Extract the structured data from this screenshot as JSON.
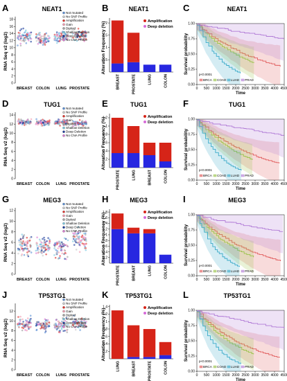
{
  "panels": [
    {
      "gene": "NEAT1",
      "letters": [
        "A",
        "B",
        "C"
      ],
      "expr": {
        "ylabel": "RNA Seq v2 (log2)",
        "yticks": [
          0,
          2,
          4,
          6,
          8,
          10,
          12,
          14,
          16,
          18
        ],
        "ylim": [
          0,
          18
        ],
        "groups": [
          {
            "name": "BREAST",
            "mean": 13,
            "spread": 1.8
          },
          {
            "name": "COLON",
            "mean": 12.5,
            "spread": 1.6
          },
          {
            "name": "LUNG",
            "mean": 13,
            "spread": 1.7
          },
          {
            "name": "PROSTATE",
            "mean": 13.5,
            "spread": 1.5
          }
        ],
        "legend": [
          "Not mutated",
          "No SNP Profile",
          "Amplification",
          "Gain",
          "Diploid",
          "Shallow Deletion",
          "Deep Deletion",
          "No CNA Profile"
        ]
      },
      "alt": {
        "ylabel": "Alteration Frequency (%)",
        "yticks": [
          0.5,
          1,
          1.5,
          2
        ],
        "ylim": [
          0,
          2.2
        ],
        "categories": [
          "BREAST",
          "PROSTATE",
          "LUNG",
          "COLON"
        ],
        "amplification": [
          1.75,
          1.2,
          0,
          0
        ],
        "deep_deletion": [
          0.35,
          0.4,
          0.3,
          0.3
        ],
        "legend": [
          "Amplification",
          "Deep deletion"
        ]
      },
      "surv": {
        "ylabel": "Survival probability",
        "xlabel": "Time",
        "xticks": [
          0,
          500,
          1000,
          1500,
          2000,
          2500,
          3000,
          3500,
          4000,
          4500
        ],
        "yticks": [
          0.0,
          0.25,
          0.5,
          0.75,
          1.0
        ],
        "pvalue": "p<0.0001",
        "series": [
          "BRCA",
          "COAD",
          "LUAD",
          "PRAD"
        ],
        "last_x": [
          4400,
          3000,
          2300,
          4500
        ]
      }
    },
    {
      "gene": "TUG1",
      "letters": [
        "D",
        "E",
        "F"
      ],
      "expr": {
        "ylabel": "RNA Seq v2 (log2)",
        "yticks": [
          0,
          2,
          4,
          6,
          8,
          10,
          12,
          14
        ],
        "ylim": [
          0,
          14
        ],
        "groups": [
          {
            "name": "BREAST",
            "mean": 12.5,
            "spread": 0.6
          },
          {
            "name": "COLON",
            "mean": 12.3,
            "spread": 0.6
          },
          {
            "name": "LUNG",
            "mean": 12.4,
            "spread": 0.6
          },
          {
            "name": "PROSTATE",
            "mean": 12.2,
            "spread": 0.5
          }
        ],
        "legend": [
          "Not mutated",
          "No SNP Profile",
          "Amplification",
          "Gain",
          "Diploid",
          "Shallow Deletion",
          "Deep Deletion",
          "No CNA Profile"
        ]
      },
      "alt": {
        "ylabel": "Alteration Frequency (%)",
        "yticks": [
          0.2,
          0.4,
          0.6,
          0.8,
          1,
          1.2
        ],
        "ylim": [
          0,
          1.3
        ],
        "categories": [
          "PROSTATE",
          "LUNG",
          "BREAST",
          "COLON"
        ],
        "amplification": [
          0.85,
          0.65,
          0.3,
          0.45
        ],
        "deep_deletion": [
          0.35,
          0.35,
          0.3,
          0.15
        ],
        "legend": [
          "Amplification",
          "Deep deletion"
        ]
      },
      "surv": {
        "ylabel": "Survival probability",
        "xlabel": "Time",
        "xticks": [
          0,
          500,
          1000,
          1500,
          2000,
          2500,
          3000,
          3500,
          4000,
          4500
        ],
        "yticks": [
          0.0,
          0.25,
          0.5,
          0.75,
          1.0
        ],
        "pvalue": "p<0.0001",
        "series": [
          "BRCA",
          "COAD",
          "LUAD",
          "PRAD"
        ],
        "last_x": [
          4400,
          3000,
          2300,
          4500
        ]
      }
    },
    {
      "gene": "MEG3",
      "letters": [
        "G",
        "H",
        "I"
      ],
      "expr": {
        "ylabel": "RNA Seq v2 (log2)",
        "yticks": [
          0,
          2,
          4,
          6,
          8,
          10,
          12
        ],
        "ylim": [
          0,
          12
        ],
        "groups": [
          {
            "name": "BREAST",
            "mean": 5.5,
            "spread": 2.2
          },
          {
            "name": "COLON",
            "mean": 5.2,
            "spread": 2.0
          },
          {
            "name": "LUNG",
            "mean": 5.0,
            "spread": 2.2
          },
          {
            "name": "PROSTATE",
            "mean": 6.5,
            "spread": 2.0
          }
        ],
        "legend": [
          "Not mutated",
          "No SNP Profile",
          "Amplification",
          "Gain",
          "Diploid",
          "Shallow Deletion",
          "Deep Deletion",
          "No CNA Profile"
        ]
      },
      "alt": {
        "ylabel": "Alteration Frequency (%)",
        "yticks": [
          0.2,
          0.4,
          0.6,
          0.8,
          1,
          1.2,
          1.4,
          1.6,
          1.8
        ],
        "ylim": [
          0,
          1.9
        ],
        "categories": [
          "PROSTATE",
          "BREAST",
          "LUNG",
          "COLON"
        ],
        "amplification": [
          0.55,
          0.2,
          0.15,
          0
        ],
        "deep_deletion": [
          1.2,
          1.05,
          1.05,
          0.3
        ],
        "legend": [
          "Amplification",
          "Deep deletion"
        ]
      },
      "surv": {
        "ylabel": "Survival probability",
        "xlabel": "Time",
        "xticks": [
          0,
          500,
          1000,
          1500,
          2000,
          2500,
          3000,
          3500,
          4000,
          4500
        ],
        "yticks": [
          0.0,
          0.25,
          0.5,
          0.75,
          1.0
        ],
        "pvalue": "p<0.0001",
        "series": [
          "BRCA",
          "COAD",
          "LUAD",
          "PRAD"
        ],
        "last_x": [
          4400,
          3000,
          2300,
          4500
        ]
      }
    },
    {
      "gene": "TP53TG1",
      "letters": [
        "J",
        "K",
        "L"
      ],
      "expr": {
        "ylabel": "RNA Seq v2 (log2)",
        "yticks": [
          0,
          2,
          4,
          6,
          8,
          10,
          12
        ],
        "ylim": [
          0,
          13
        ],
        "groups": [
          {
            "name": "BREAST",
            "mean": 9.5,
            "spread": 1.6
          },
          {
            "name": "COLON",
            "mean": 9.2,
            "spread": 1.4
          },
          {
            "name": "LUNG",
            "mean": 9.0,
            "spread": 1.5
          },
          {
            "name": "PROSTATE",
            "mean": 9.5,
            "spread": 1.3
          }
        ],
        "legend": [
          "Not mutated",
          "No SNP Profile",
          "Amplification",
          "Gain",
          "Diploid",
          "Shallow Deletion",
          "Deep Deletion",
          "No CNA Profile"
        ]
      },
      "alt": {
        "ylabel": "Alteration Frequency (%)",
        "yticks": [
          0.2,
          0.4,
          0.6,
          0.8,
          1,
          1.2,
          1.4
        ],
        "ylim": [
          0,
          1.45
        ],
        "categories": [
          "LUNG",
          "BREAST",
          "PROSTATE",
          "COLON"
        ],
        "amplification": [
          1.3,
          0.85,
          0.75,
          0.35
        ],
        "deep_deletion": [
          0,
          0.05,
          0.05,
          0.1
        ],
        "legend": [
          "Amplification",
          "Deep deletion"
        ]
      },
      "surv": {
        "ylabel": "Survival probability",
        "xlabel": "Time",
        "xticks": [
          0,
          500,
          1000,
          1500,
          2000,
          2500,
          3000,
          3500,
          4000,
          4500
        ],
        "yticks": [
          0.0,
          0.25,
          0.5,
          0.75,
          1.0
        ],
        "pvalue": "p<0.0001",
        "series": [
          "BRCA",
          "COAD",
          "LUAD",
          "PRAD"
        ],
        "last_x": [
          4400,
          3000,
          2300,
          4500
        ]
      }
    }
  ],
  "colors": {
    "amplification": "#d62418",
    "deep_deletion": "#2727e0",
    "BRCA": "#e05a5a",
    "COAD": "#9ac24a",
    "LUAD": "#3aaac8",
    "PRAD": "#b07ad6",
    "expr_points": [
      "#5a8fd6",
      "#c8c8c8",
      "#e0302a",
      "#f29ab0",
      "#a0a0a0",
      "#7ac8e0",
      "#1a3a9a",
      "#d878d0"
    ]
  },
  "chart_data": [
    {
      "type": "scatter",
      "title": "NEAT1",
      "ylabel": "RNA Seq v2 (log2)",
      "categories": [
        "BREAST",
        "COLON",
        "LUNG",
        "PROSTATE"
      ],
      "ylim": [
        0,
        18
      ]
    },
    {
      "type": "bar",
      "title": "NEAT1",
      "ylabel": "Alteration Frequency (%)",
      "categories": [
        "BREAST",
        "PROSTATE",
        "LUNG",
        "COLON"
      ],
      "series": [
        {
          "name": "Amplification",
          "values": [
            1.75,
            1.2,
            0,
            0
          ]
        },
        {
          "name": "Deep deletion",
          "values": [
            0.35,
            0.4,
            0.3,
            0.3
          ]
        }
      ],
      "ylim": [
        0,
        2.2
      ]
    },
    {
      "type": "line",
      "title": "NEAT1",
      "xlabel": "Time",
      "ylabel": "Survival probability",
      "series": [
        {
          "name": "BRCA"
        },
        {
          "name": "COAD"
        },
        {
          "name": "LUAD"
        },
        {
          "name": "PRAD"
        }
      ],
      "xlim": [
        0,
        4500
      ],
      "ylim": [
        0,
        1
      ]
    },
    {
      "type": "scatter",
      "title": "TUG1",
      "ylabel": "RNA Seq v2 (log2)",
      "categories": [
        "BREAST",
        "COLON",
        "LUNG",
        "PROSTATE"
      ],
      "ylim": [
        0,
        14
      ]
    },
    {
      "type": "bar",
      "title": "TUG1",
      "ylabel": "Alteration Frequency (%)",
      "categories": [
        "PROSTATE",
        "LUNG",
        "BREAST",
        "COLON"
      ],
      "series": [
        {
          "name": "Amplification",
          "values": [
            0.85,
            0.65,
            0.3,
            0.45
          ]
        },
        {
          "name": "Deep deletion",
          "values": [
            0.35,
            0.35,
            0.3,
            0.15
          ]
        }
      ],
      "ylim": [
        0,
        1.3
      ]
    },
    {
      "type": "line",
      "title": "TUG1",
      "xlabel": "Time",
      "ylabel": "Survival probability",
      "series": [
        {
          "name": "BRCA"
        },
        {
          "name": "COAD"
        },
        {
          "name": "LUAD"
        },
        {
          "name": "PRAD"
        }
      ],
      "xlim": [
        0,
        4500
      ],
      "ylim": [
        0,
        1
      ]
    },
    {
      "type": "scatter",
      "title": "MEG3",
      "ylabel": "RNA Seq v2 (log2)",
      "categories": [
        "BREAST",
        "COLON",
        "LUNG",
        "PROSTATE"
      ],
      "ylim": [
        0,
        12
      ]
    },
    {
      "type": "bar",
      "title": "MEG3",
      "ylabel": "Alteration Frequency (%)",
      "categories": [
        "PROSTATE",
        "BREAST",
        "LUNG",
        "COLON"
      ],
      "series": [
        {
          "name": "Amplification",
          "values": [
            0.55,
            0.2,
            0.15,
            0
          ]
        },
        {
          "name": "Deep deletion",
          "values": [
            1.2,
            1.05,
            1.05,
            0.3
          ]
        }
      ],
      "ylim": [
        0,
        1.9
      ]
    },
    {
      "type": "line",
      "title": "MEG3",
      "xlabel": "Time",
      "ylabel": "Survival probability",
      "series": [
        {
          "name": "BRCA"
        },
        {
          "name": "COAD"
        },
        {
          "name": "LUAD"
        },
        {
          "name": "PRAD"
        }
      ],
      "xlim": [
        0,
        4500
      ],
      "ylim": [
        0,
        1
      ]
    },
    {
      "type": "scatter",
      "title": "TP53TG1",
      "ylabel": "RNA Seq v2 (log2)",
      "categories": [
        "BREAST",
        "COLON",
        "LUNG",
        "PROSTATE"
      ],
      "ylim": [
        0,
        13
      ]
    },
    {
      "type": "bar",
      "title": "TP53TG1",
      "ylabel": "Alteration Frequency (%)",
      "categories": [
        "LUNG",
        "BREAST",
        "PROSTATE",
        "COLON"
      ],
      "series": [
        {
          "name": "Amplification",
          "values": [
            1.3,
            0.85,
            0.75,
            0.35
          ]
        },
        {
          "name": "Deep deletion",
          "values": [
            0,
            0.05,
            0.05,
            0.1
          ]
        }
      ],
      "ylim": [
        0,
        1.45
      ]
    },
    {
      "type": "line",
      "title": "TP53TG1",
      "xlabel": "Time",
      "ylabel": "Survival probability",
      "series": [
        {
          "name": "BRCA"
        },
        {
          "name": "COAD"
        },
        {
          "name": "LUAD"
        },
        {
          "name": "PRAD"
        }
      ],
      "xlim": [
        0,
        4500
      ],
      "ylim": [
        0,
        1
      ]
    }
  ]
}
